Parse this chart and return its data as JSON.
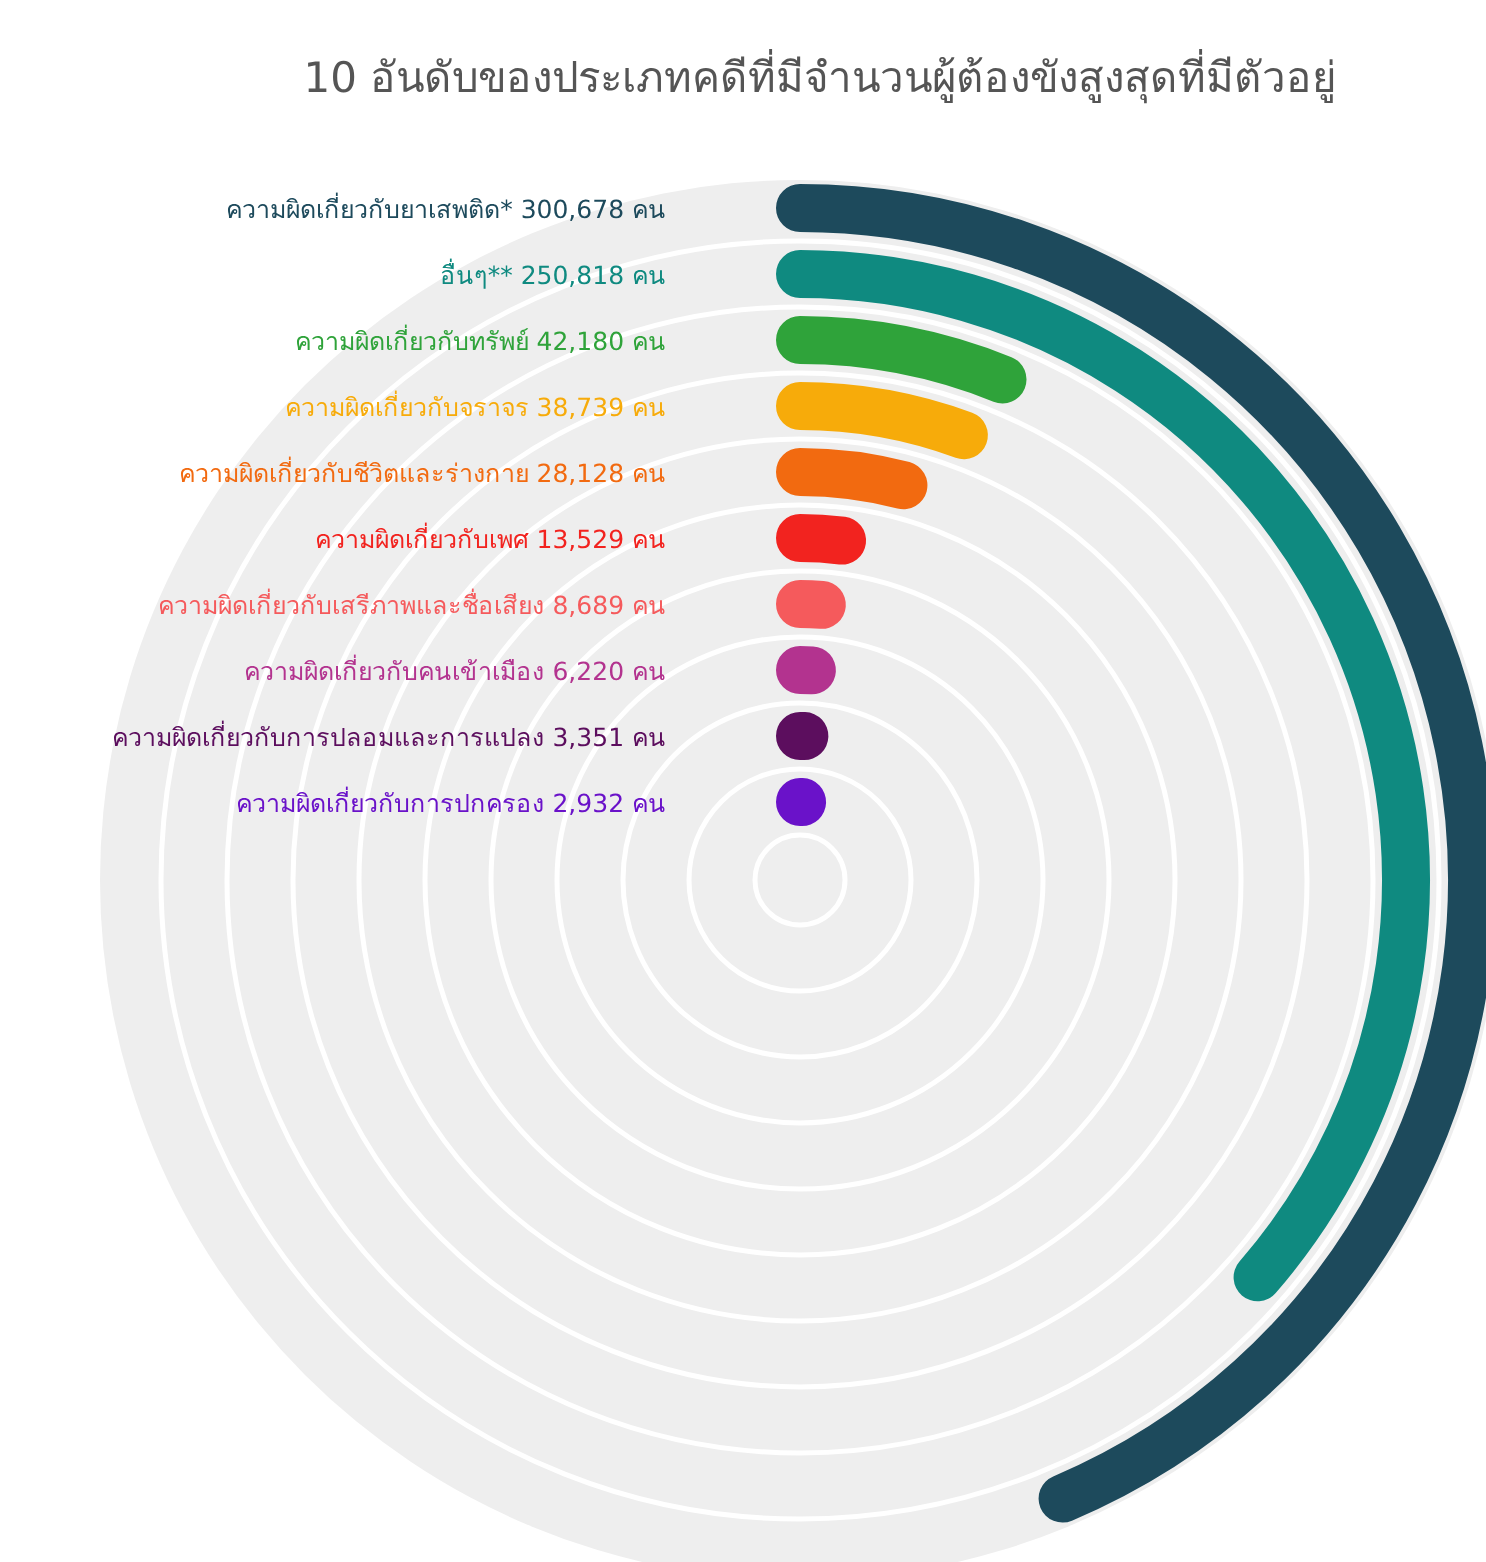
{
  "chart_data": {
    "type": "other",
    "title": "10 อันดับของประเภทคดีที่มีจำนวนผู้ต้องขังสูงสุดที่มีตัวอยู่",
    "categories": [
      "ความผิดเกี่ยวกับยาเสพติด*",
      "อื่นๆ**",
      "ความผิดเกี่ยวกับทรัพย์",
      "ความผิดเกี่ยวกับจราจร",
      "ความผิดเกี่ยวกับชีวิตและร่างกาย",
      "ความผิดเกี่ยวกับเพศ",
      "ความผิดเกี่ยวกับเสรีภาพและชื่อเสียง",
      "ความผิดเกี่ยวกับคนเข้าเมือง",
      "ความผิดเกี่ยวกับการปลอมและการแปลง",
      "ความผิดเกี่ยวกับการปกครอง"
    ],
    "values": [
      300678,
      250818,
      42180,
      38739,
      28128,
      13529,
      8689,
      6220,
      3351,
      2932
    ],
    "value_labels": [
      "300,678 คน",
      "250,818 คน",
      "42,180 คน",
      "38,739 คน",
      "28,128 คน",
      "13,529 คน",
      "8,689 คน",
      "6,220 คน",
      "3,351 คน",
      "2,932 คน"
    ],
    "colors": [
      "#1d4a5c",
      "#0f8a80",
      "#2fa33a",
      "#f7ab0a",
      "#f26a10",
      "#f2231f",
      "#f55a5c",
      "#b3338f",
      "#5c0e5e",
      "#6a12c9"
    ]
  }
}
